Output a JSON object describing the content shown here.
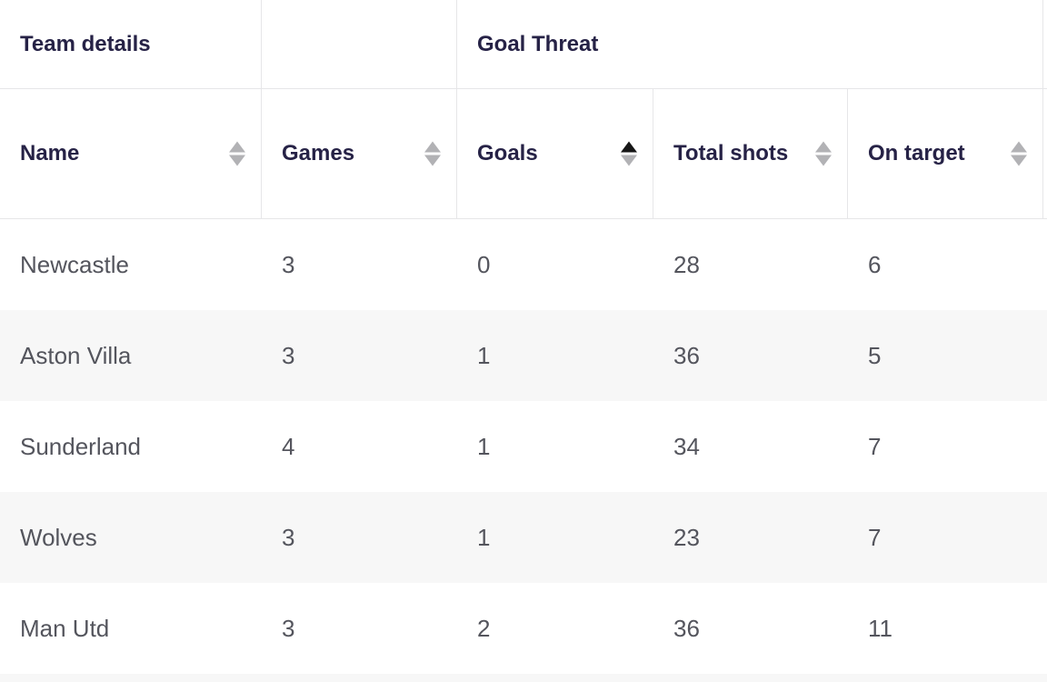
{
  "table": {
    "groups": [
      {
        "label": "Team details"
      },
      {
        "label": ""
      },
      {
        "label": "Goal Threat"
      }
    ],
    "columns": [
      {
        "label": "Name",
        "sort": "none"
      },
      {
        "label": "Games",
        "sort": "none"
      },
      {
        "label": "Goals",
        "sort": "asc"
      },
      {
        "label": "Total shots",
        "sort": "none"
      },
      {
        "label": "On target",
        "sort": "none"
      }
    ],
    "rows": [
      {
        "name": "Newcastle",
        "games": "3",
        "goals": "0",
        "total_shots": "28",
        "on_target": "6"
      },
      {
        "name": "Aston Villa",
        "games": "3",
        "goals": "1",
        "total_shots": "36",
        "on_target": "5"
      },
      {
        "name": "Sunderland",
        "games": "4",
        "goals": "1",
        "total_shots": "34",
        "on_target": "7"
      },
      {
        "name": "Wolves",
        "games": "3",
        "goals": "1",
        "total_shots": "23",
        "on_target": "7"
      },
      {
        "name": "Man Utd",
        "games": "3",
        "goals": "2",
        "total_shots": "36",
        "on_target": "11"
      }
    ]
  },
  "colors": {
    "header_text": "#262246",
    "body_text": "#54555d",
    "border": "#e6e6e8",
    "row_stripe": "#f7f7f7",
    "sort_inactive": "#b2b2b5",
    "sort_active": "#161616"
  }
}
